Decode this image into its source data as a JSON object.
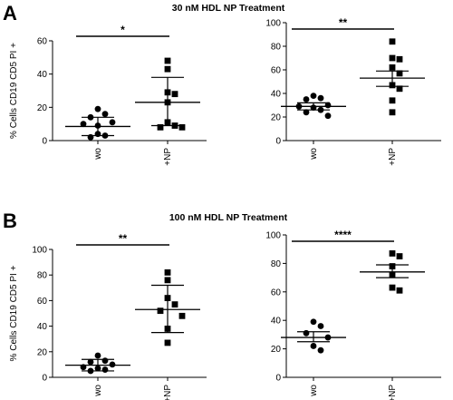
{
  "panels": [
    {
      "letter": "A",
      "title": "30 nM HDL NP Treatment"
    },
    {
      "letter": "B",
      "title": "100 nM HDL NP Treatment"
    }
  ],
  "chart_data": [
    {
      "type": "scatter",
      "panel": "A",
      "ylabel": "% Cells CD19 CD5 PI +",
      "categories": [
        "wo",
        "+NP"
      ],
      "ylim": [
        0,
        60
      ],
      "yticks": [
        0,
        20,
        40,
        60
      ],
      "significance": "*",
      "groups": [
        {
          "category": "wo",
          "marker": "circle",
          "values": [
            19,
            16,
            14,
            11,
            10,
            9,
            4,
            3,
            2
          ],
          "mean": 8.5,
          "err_low": 3,
          "err_high": 14
        },
        {
          "category": "+NP",
          "marker": "square",
          "values": [
            48,
            43,
            29,
            28,
            23,
            11,
            9,
            8,
            8
          ],
          "mean": 23,
          "err_low": 9,
          "err_high": 38
        }
      ]
    },
    {
      "type": "scatter",
      "panel": "A",
      "ylabel": "",
      "categories": [
        "wo",
        "+NP"
      ],
      "ylim": [
        0,
        100
      ],
      "yticks": [
        0,
        20,
        40,
        60,
        80,
        100
      ],
      "significance": "**",
      "groups": [
        {
          "category": "wo",
          "marker": "circle",
          "values": [
            38,
            36,
            35,
            30,
            29,
            28,
            26,
            24,
            21
          ],
          "mean": 29,
          "err_low": 26,
          "err_high": 32
        },
        {
          "category": "+NP",
          "marker": "square",
          "values": [
            84,
            70,
            69,
            62,
            57,
            47,
            44,
            34,
            24
          ],
          "mean": 53,
          "err_low": 46,
          "err_high": 59
        }
      ]
    },
    {
      "type": "scatter",
      "panel": "B",
      "ylabel": "% Cells CD19 CD5 PI +",
      "categories": [
        "wo",
        "+NP"
      ],
      "ylim": [
        0,
        100
      ],
      "yticks": [
        0,
        20,
        40,
        60,
        80,
        100
      ],
      "significance": "**",
      "groups": [
        {
          "category": "wo",
          "marker": "circle",
          "values": [
            17,
            13,
            12,
            10,
            8,
            7,
            6,
            5
          ],
          "mean": 9.5,
          "err_low": 5,
          "err_high": 14
        },
        {
          "category": "+NP",
          "marker": "square",
          "values": [
            82,
            76,
            62,
            57,
            52,
            48,
            38,
            27
          ],
          "mean": 53,
          "err_low": 35,
          "err_high": 72
        }
      ]
    },
    {
      "type": "scatter",
      "panel": "B",
      "ylabel": "",
      "categories": [
        "wo",
        "+NP"
      ],
      "ylim": [
        0,
        100
      ],
      "yticks": [
        0,
        20,
        40,
        60,
        80,
        100
      ],
      "significance": "****",
      "groups": [
        {
          "category": "wo",
          "marker": "circle",
          "values": [
            39,
            36,
            31,
            28,
            22,
            19
          ],
          "mean": 28,
          "err_low": 25,
          "err_high": 32
        },
        {
          "category": "+NP",
          "marker": "square",
          "values": [
            87,
            85,
            78,
            72,
            63,
            61
          ],
          "mean": 74,
          "err_low": 70,
          "err_high": 79
        }
      ]
    }
  ]
}
